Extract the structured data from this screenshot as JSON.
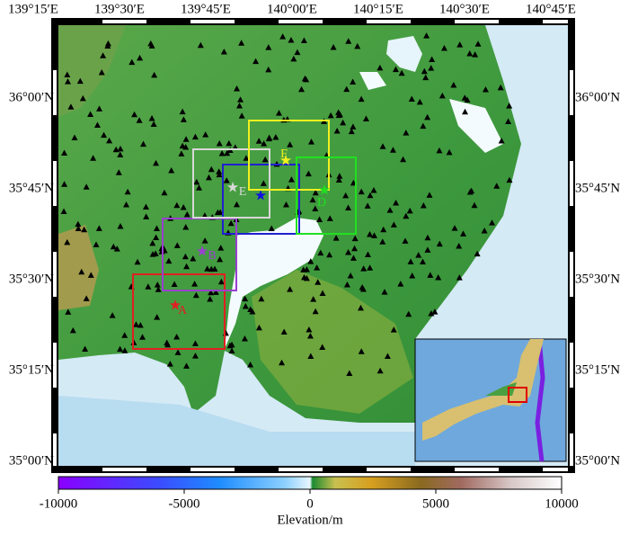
{
  "map": {
    "lon_ticks": [
      {
        "value": 139.25,
        "label": "139°15′E"
      },
      {
        "value": 139.5,
        "label": "139°30′E"
      },
      {
        "value": 139.75,
        "label": "139°45′E"
      },
      {
        "value": 140.0,
        "label": "140°00′E"
      },
      {
        "value": 140.25,
        "label": "140°15′E"
      },
      {
        "value": 140.5,
        "label": "140°30′E"
      },
      {
        "value": 140.75,
        "label": "140°45′E"
      }
    ],
    "lat_ticks": [
      {
        "value": 36.0,
        "label": "36°00′N"
      },
      {
        "value": 35.75,
        "label": "35°45′N"
      },
      {
        "value": 35.5,
        "label": "35°30′N"
      },
      {
        "value": 35.25,
        "label": "35°15′N"
      },
      {
        "value": 35.0,
        "label": "35°00′N"
      }
    ],
    "regions": [
      {
        "label": "A",
        "color": "#e02020"
      },
      {
        "label": "B",
        "color": "#9a40d0"
      },
      {
        "label": "E",
        "color": "#d8d8d8"
      },
      {
        "label": "F",
        "color": "#f0f020"
      },
      {
        "label": "D",
        "color": "#20e020"
      }
    ],
    "colorbar": {
      "title": "Elevation/m",
      "range": [
        -10000,
        10000
      ],
      "ticks": [
        -10000,
        -5000,
        0,
        5000,
        10000
      ]
    }
  }
}
